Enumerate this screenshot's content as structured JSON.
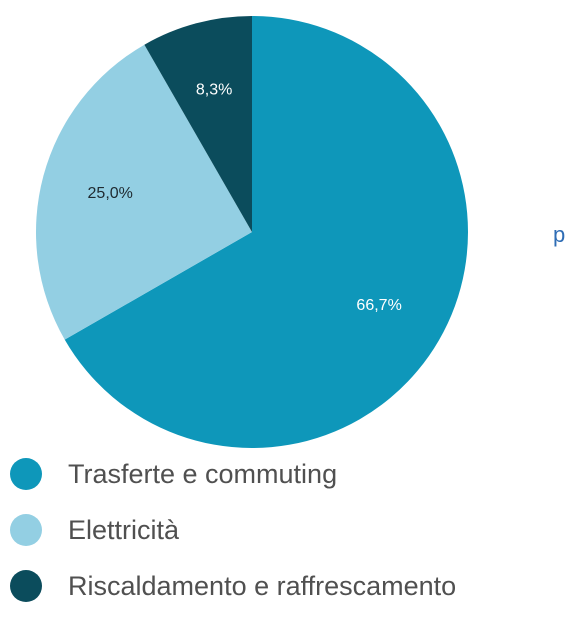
{
  "side_text": "p",
  "chart_data": {
    "type": "pie",
    "title": "",
    "start_angle_deg": 0,
    "direction": "clockwise",
    "slices": [
      {
        "label": "Trasferte e commuting",
        "value": 66.7,
        "display": "66,7%",
        "color": "#0e97ba",
        "label_color": "#ffffff"
      },
      {
        "label": "Elettricità",
        "value": 25.0,
        "display": "25,0%",
        "color": "#93cfe3",
        "label_color": "#1f2a30"
      },
      {
        "label": "Riscaldamento e raffrescamento",
        "value": 8.3,
        "display": "8,3%",
        "color": "#0b4c5c",
        "label_color": "#ffffff"
      }
    ],
    "legend_position": "bottom-left"
  }
}
